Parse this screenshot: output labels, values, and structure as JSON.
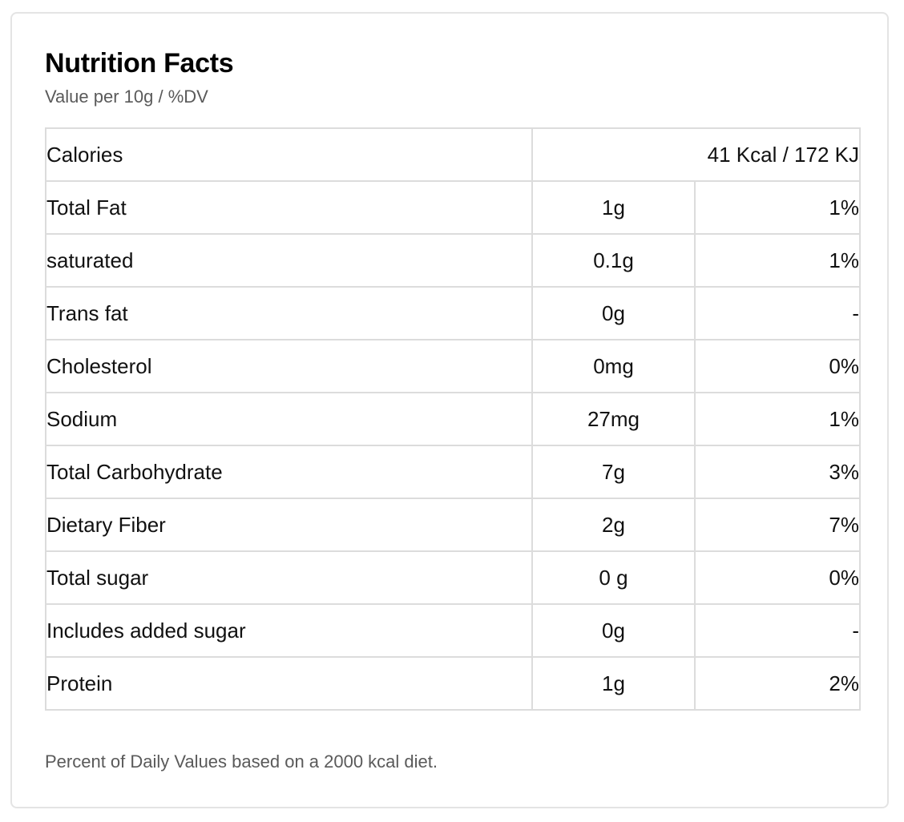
{
  "header": {
    "title": "Nutrition Facts",
    "subtitle": "Value per 10g / %DV"
  },
  "calories": {
    "label": "Calories",
    "value": "41 Kcal / 172 KJ"
  },
  "rows": [
    {
      "name": "Total Fat",
      "amount": "1g",
      "dv": "1%"
    },
    {
      "name": "saturated",
      "amount": "0.1g",
      "dv": "1%"
    },
    {
      "name": "Trans fat",
      "amount": "0g",
      "dv": "-"
    },
    {
      "name": "Cholesterol",
      "amount": "0mg",
      "dv": "0%"
    },
    {
      "name": "Sodium",
      "amount": "27mg",
      "dv": "1%"
    },
    {
      "name": "Total Carbohydrate",
      "amount": "7g",
      "dv": "3%"
    },
    {
      "name": "Dietary Fiber",
      "amount": "2g",
      "dv": "7%"
    },
    {
      "name": "Total sugar",
      "amount": "0 g",
      "dv": "0%"
    },
    {
      "name": "Includes added sugar",
      "amount": "0g",
      "dv": "-"
    },
    {
      "name": "Protein",
      "amount": "1g",
      "dv": "2%"
    }
  ],
  "footnote": "Percent of Daily Values based on a 2000 kcal diet.",
  "colors": {
    "border": "#dcdcdc",
    "card_border": "#e4e4e4",
    "text": "#111111",
    "muted_text": "#5a5a5a"
  }
}
